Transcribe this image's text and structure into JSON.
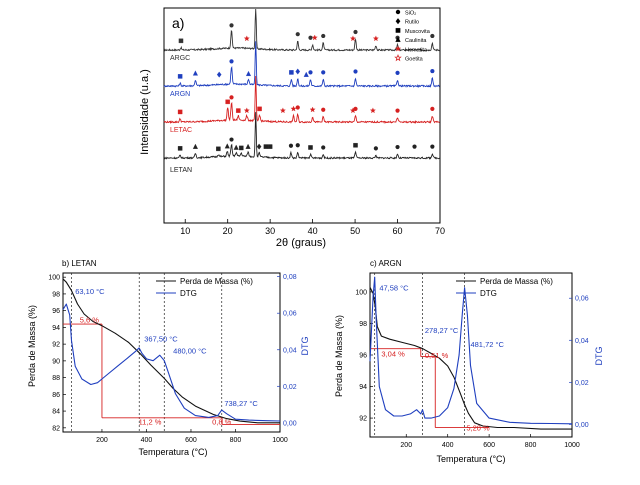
{
  "chart_data": [
    {
      "type": "line",
      "panel_label": "a)",
      "xlabel": "2θ (graus)",
      "ylabel": "Intensidade (u.a.)",
      "xlim": [
        5,
        70
      ],
      "xticks": [
        10,
        20,
        30,
        40,
        50,
        60,
        70
      ],
      "legend": {
        "placement": "top-right",
        "entries": [
          {
            "label": "SiO₂",
            "marker": "circle"
          },
          {
            "label": "Rutilo",
            "marker": "diamond"
          },
          {
            "label": "Muscovita",
            "marker": "square"
          },
          {
            "label": "Caulinita",
            "marker": "triangle"
          },
          {
            "label": "Hematita",
            "marker": "star"
          },
          {
            "label": "Goetita",
            "marker": "star-outline"
          }
        ]
      },
      "series": [
        {
          "name": "ARGC",
          "color": "#333333",
          "baseline": 0.9,
          "peaks": [
            [
              9,
              0.5
            ],
            [
              20.9,
              4
            ],
            [
              26.6,
              10
            ],
            [
              36.5,
              2
            ],
            [
              40,
              1.2
            ],
            [
              42.5,
              1.6
            ],
            [
              50.1,
              2.5
            ],
            [
              54.9,
              1
            ],
            [
              60,
              1.2
            ],
            [
              68.2,
              1.6
            ]
          ]
        },
        {
          "name": "ARGN",
          "color": "#1f3fbf",
          "baseline": 2.5,
          "peaks": [
            [
              8.8,
              0.6
            ],
            [
              12.4,
              1.3
            ],
            [
              20.9,
              4
            ],
            [
              24.9,
              1.2
            ],
            [
              26.6,
              10
            ],
            [
              35,
              1.5
            ],
            [
              36.5,
              1.7
            ],
            [
              39.5,
              1.5
            ],
            [
              42.5,
              1.5
            ],
            [
              50.1,
              1.7
            ],
            [
              60,
              1.4
            ],
            [
              68.2,
              1.8
            ]
          ]
        },
        {
          "name": "LETAC",
          "color": "#d62020",
          "baseline": 4.1,
          "peaks": [
            [
              8.8,
              0.7
            ],
            [
              20,
              3
            ],
            [
              20.9,
              4
            ],
            [
              22.5,
              1
            ],
            [
              24.5,
              1
            ],
            [
              26.6,
              10
            ],
            [
              27.5,
              1.4
            ],
            [
              35.5,
              1.4
            ],
            [
              36.5,
              1.7
            ],
            [
              40,
              1.2
            ],
            [
              42.5,
              1.2
            ],
            [
              50.1,
              1.4
            ],
            [
              60,
              1
            ],
            [
              68.2,
              1.4
            ]
          ]
        },
        {
          "name": "LETAN",
          "color": "#222222",
          "baseline": 5.6,
          "peaks": [
            [
              8.8,
              0.6
            ],
            [
              12.4,
              1
            ],
            [
              17.8,
              0.5
            ],
            [
              19.9,
              1.1
            ],
            [
              20.9,
              2.6
            ],
            [
              22,
              0.8
            ],
            [
              23.2,
              0.7
            ],
            [
              24.8,
              1
            ],
            [
              26.6,
              10
            ],
            [
              27.4,
              1
            ],
            [
              34.9,
              1.2
            ],
            [
              36.5,
              1.3
            ],
            [
              39.5,
              0.8
            ],
            [
              42.5,
              0.8
            ],
            [
              50.1,
              1.3
            ],
            [
              54.9,
              0.6
            ],
            [
              60,
              0.9
            ],
            [
              68.2,
              1
            ]
          ]
        }
      ]
    },
    {
      "type": "line",
      "panel_label": "b) LETAN",
      "xlabel": "Temperatura (°C)",
      "ylabel": "Perda de Massa (%)",
      "y2label": "DTG",
      "xlim": [
        25,
        1000
      ],
      "ylim": [
        81.5,
        100.5
      ],
      "y2lim": [
        -0.005,
        0.082
      ],
      "xticks": [
        200,
        400,
        600,
        800,
        1000
      ],
      "yticks": [
        82,
        84,
        86,
        88,
        90,
        92,
        94,
        96,
        98,
        100
      ],
      "y2ticks": [
        "0,00",
        "0,02",
        "0,04",
        "0,06",
        "0,08"
      ],
      "y2tick_values": [
        0,
        0.02,
        0.04,
        0.06,
        0.08
      ],
      "legend": {
        "placement": "top-right"
      },
      "series": [
        {
          "name": "Perda de Massa (%)",
          "color": "#111111",
          "axis": "left",
          "x": [
            25,
            40,
            63,
            90,
            120,
            160,
            200,
            260,
            320,
            370,
            420,
            480,
            520,
            560,
            620,
            700,
            760,
            820,
            900,
            1000
          ],
          "values": [
            99.8,
            99.4,
            98.4,
            96.8,
            95.6,
            94.7,
            94.2,
            93.3,
            92.2,
            90.9,
            89.5,
            87.9,
            86.7,
            85.7,
            84.6,
            83.6,
            83.1,
            82.8,
            82.6,
            82.6
          ]
        },
        {
          "name": "DTG",
          "color": "#1f3fbf",
          "axis": "right",
          "x": [
            25,
            40,
            55,
            63,
            80,
            110,
            150,
            180,
            200,
            230,
            270,
            320,
            350,
            367,
            380,
            400,
            430,
            460,
            480,
            500,
            530,
            570,
            620,
            680,
            720,
            738,
            760,
            800,
            860,
            940,
            1000
          ],
          "values": [
            0.062,
            0.065,
            0.059,
            0.045,
            0.031,
            0.024,
            0.021,
            0.022,
            0.024,
            0.027,
            0.031,
            0.036,
            0.039,
            0.041,
            0.038,
            0.035,
            0.034,
            0.037,
            0.034,
            0.027,
            0.016,
            0.008,
            0.004,
            0.003,
            0.004,
            0.007,
            0.005,
            0.002,
            0.0015,
            0.0012,
            0.001
          ]
        }
      ],
      "annotations": [
        {
          "text": "63,10 °C",
          "color": "#1f3fbf",
          "x": 80,
          "y": 98.0
        },
        {
          "text": "367,50 °C",
          "color": "#1f3fbf",
          "x": 390,
          "y": 92.3
        },
        {
          "text": "480,00 °C",
          "color": "#1f3fbf",
          "x": 520,
          "y": 90.9
        },
        {
          "text": "738,27 °C",
          "color": "#1f3fbf",
          "x": 750,
          "y": 84.6
        },
        {
          "text": "5,6 %",
          "color": "#d62020",
          "x": 100,
          "y": 94.6
        },
        {
          "text": "11,2 %",
          "color": "#d62020",
          "x": 365,
          "y": 82.4
        },
        {
          "text": "0,8 %",
          "color": "#d62020",
          "x": 695,
          "y": 82.4
        }
      ],
      "reference_lines": [
        63.1,
        367.5,
        480,
        738.27
      ],
      "mass_steps": [
        {
          "x_from": 25,
          "x_to": 200,
          "y_top": 94.4,
          "y_bottom": 94.4
        },
        {
          "x_from": 200,
          "x_to": 200,
          "y_top": 94.4,
          "y_bottom": 83.2
        },
        {
          "x_from": 200,
          "x_to": 740,
          "y_top": 83.2,
          "y_bottom": 83.2
        },
        {
          "x_from": 740,
          "x_to": 740,
          "y_top": 83.2,
          "y_bottom": 82.4
        },
        {
          "x_from": 740,
          "x_to": 1000,
          "y_top": 82.4,
          "y_bottom": 82.4
        }
      ]
    },
    {
      "type": "line",
      "panel_label": "c) ARGN",
      "xlabel": "Temperatura (°C)",
      "ylabel": "Perda de Massa (%)",
      "y2label": "DTG",
      "xlim": [
        25,
        1000
      ],
      "ylim": [
        90.8,
        101.2
      ],
      "y2lim": [
        -0.006,
        0.072
      ],
      "xticks": [
        200,
        400,
        600,
        800,
        1000
      ],
      "yticks": [
        92,
        94,
        96,
        98,
        100
      ],
      "y2ticks": [
        "0,00",
        "0,02",
        "0,04",
        "0,06"
      ],
      "y2tick_values": [
        0,
        0.02,
        0.04,
        0.06
      ],
      "legend": {
        "placement": "top-right"
      },
      "series": [
        {
          "name": "Perda de Massa (%)",
          "color": "#111111",
          "axis": "left",
          "x": [
            25,
            40,
            50,
            60,
            80,
            120,
            180,
            240,
            280,
            320,
            360,
            400,
            430,
            460,
            480,
            500,
            530,
            570,
            640,
            720,
            850,
            1000
          ],
          "values": [
            100.3,
            99.9,
            99.1,
            97.8,
            97.2,
            97.0,
            96.8,
            96.6,
            96.4,
            96.1,
            95.8,
            95.3,
            94.6,
            93.6,
            92.9,
            92.3,
            91.7,
            91.5,
            91.4,
            91.4,
            91.3,
            91.3
          ]
        },
        {
          "name": "DTG",
          "color": "#1f3fbf",
          "axis": "right",
          "x": [
            25,
            40,
            47.58,
            55,
            70,
            100,
            140,
            180,
            220,
            250,
            270,
            278.27,
            290,
            320,
            360,
            400,
            430,
            455,
            470,
            481.72,
            495,
            510,
            540,
            600,
            700,
            800,
            900,
            1000
          ],
          "values": [
            0.03,
            0.061,
            0.07,
            0.05,
            0.018,
            0.007,
            0.004,
            0.004,
            0.005,
            0.007,
            0.005,
            0.007,
            0.003,
            0.003,
            0.004,
            0.008,
            0.017,
            0.033,
            0.052,
            0.065,
            0.052,
            0.028,
            0.01,
            0.003,
            0.001,
            0.0005,
            0.0004,
            0.0003
          ]
        }
      ],
      "annotations": [
        {
          "text": "47,58 °C",
          "color": "#1f3fbf",
          "x": 70,
          "y": 100.1
        },
        {
          "text": "278,27 °C",
          "color": "#1f3fbf",
          "x": 290,
          "y": 97.4
        },
        {
          "text": "481,72 °C",
          "color": "#1f3fbf",
          "x": 510,
          "y": 96.5
        },
        {
          "text": "3,04 %",
          "color": "#d62020",
          "x": 80,
          "y": 95.9
        },
        {
          "text": "0,51 %",
          "color": "#d62020",
          "x": 290,
          "y": 95.8
        },
        {
          "text": "5,20 %",
          "color": "#d62020",
          "x": 490,
          "y": 91.2
        }
      ],
      "reference_lines": [
        47.58,
        278.27,
        481.72
      ],
      "mass_steps": [
        {
          "x_from": 25,
          "x_to": 270,
          "y_top": 96.4,
          "y_bottom": 96.4
        },
        {
          "x_from": 270,
          "x_to": 270,
          "y_top": 96.4,
          "y_bottom": 95.9
        },
        {
          "x_from": 270,
          "x_to": 340,
          "y_top": 95.9,
          "y_bottom": 95.9
        },
        {
          "x_from": 340,
          "x_to": 340,
          "y_top": 95.9,
          "y_bottom": 91.4
        },
        {
          "x_from": 340,
          "x_to": 600,
          "y_top": 91.4,
          "y_bottom": 91.4
        }
      ]
    }
  ]
}
